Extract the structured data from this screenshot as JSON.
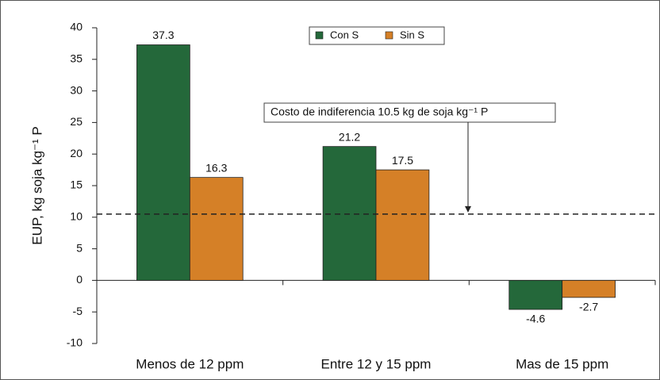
{
  "chart_data": {
    "type": "bar",
    "y_label": "EUP, kg soja kg⁻¹ P",
    "categories": [
      "Menos de 12 ppm",
      "Entre 12 y 15 ppm",
      "Mas de 15 ppm"
    ],
    "series": [
      {
        "name": "Con S",
        "color": "#24683a",
        "values": [
          37.3,
          21.2,
          -4.6
        ]
      },
      {
        "name": "Sin S",
        "color": "#d58027",
        "values": [
          16.3,
          17.5,
          -2.7
        ]
      }
    ],
    "ylim": [
      -10,
      40
    ],
    "yticks": [
      -10,
      -5,
      0,
      5,
      10,
      15,
      20,
      25,
      30,
      35,
      40
    ],
    "reference_line": 10.5,
    "annotation": "Costo de indiferencia 10.5 kg de soja kg⁻¹ P",
    "legend": "top"
  }
}
